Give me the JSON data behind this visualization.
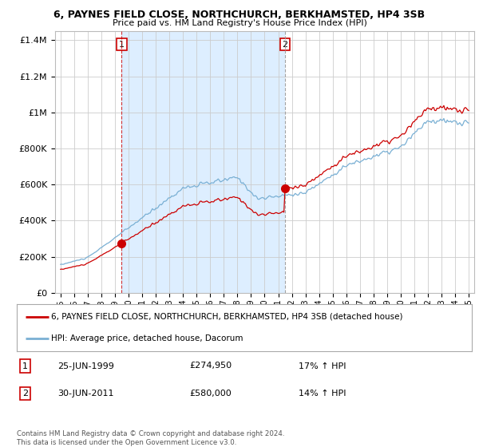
{
  "title_line1": "6, PAYNES FIELD CLOSE, NORTHCHURCH, BERKHAMSTED, HP4 3SB",
  "title_line2": "Price paid vs. HM Land Registry's House Price Index (HPI)",
  "legend_entry1": "6, PAYNES FIELD CLOSE, NORTHCHURCH, BERKHAMSTED, HP4 3SB (detached house)",
  "legend_entry2": "HPI: Average price, detached house, Dacorum",
  "sale1_date": "25-JUN-1999",
  "sale1_price": "£274,950",
  "sale1_hpi": "17% ↑ HPI",
  "sale2_date": "30-JUN-2011",
  "sale2_price": "£580,000",
  "sale2_hpi": "14% ↑ HPI",
  "footnote": "Contains HM Land Registry data © Crown copyright and database right 2024.\nThis data is licensed under the Open Government Licence v3.0.",
  "red_color": "#cc0000",
  "blue_color": "#7ab0d4",
  "shade_color": "#ddeeff",
  "background_color": "#ffffff",
  "grid_color": "#cccccc",
  "sale1_x": 1999.49,
  "sale2_x": 2011.49,
  "ylim_max": 1450000,
  "yticks": [
    0,
    200000,
    400000,
    600000,
    800000,
    1000000,
    1200000,
    1400000
  ],
  "sale1_price_val": 274950,
  "sale2_price_val": 580000
}
